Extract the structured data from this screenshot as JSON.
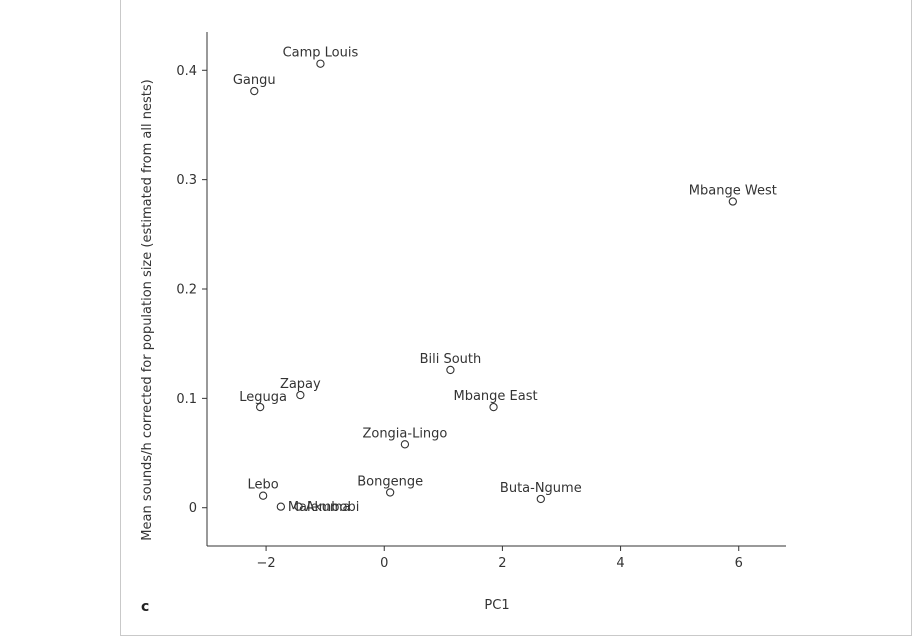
{
  "chart_data": {
    "type": "scatter",
    "panel_label": "c",
    "xlabel": "PC1",
    "ylabel": "Mean sounds/h corrected for population size (estimated from all nests)",
    "xlim": [
      -3,
      6.8
    ],
    "ylim": [
      -0.035,
      0.435
    ],
    "x_ticks": [
      -2,
      0,
      2,
      4,
      6
    ],
    "y_ticks": [
      0,
      0.1,
      0.2,
      0.3,
      0.4
    ],
    "points": [
      {
        "label": "Camp Louis",
        "x": -1.08,
        "y": 0.406,
        "anchor": "above"
      },
      {
        "label": "Gangu",
        "x": -2.2,
        "y": 0.381,
        "anchor": "above"
      },
      {
        "label": "Mbange West",
        "x": 5.9,
        "y": 0.28,
        "anchor": "above"
      },
      {
        "label": "Bili South",
        "x": 1.12,
        "y": 0.126,
        "anchor": "above"
      },
      {
        "label": "Zapay",
        "x": -1.42,
        "y": 0.103,
        "anchor": "above"
      },
      {
        "label": "Leguga",
        "x": -2.1,
        "y": 0.092,
        "anchor": "left-above"
      },
      {
        "label": "Mbange East",
        "x": 1.85,
        "y": 0.092,
        "anchor": "right-above"
      },
      {
        "label": "Zongia-Lingo",
        "x": 0.35,
        "y": 0.058,
        "anchor": "above"
      },
      {
        "label": "Bongenge",
        "x": 0.1,
        "y": 0.014,
        "anchor": "above"
      },
      {
        "label": "Lebo",
        "x": -2.05,
        "y": 0.011,
        "anchor": "above"
      },
      {
        "label": "Malembobi",
        "x": -1.75,
        "y": 0.001,
        "anchor": "right"
      },
      {
        "label": "Akuma",
        "x": -1.45,
        "y": 0.001,
        "anchor": "right"
      },
      {
        "label": "Buta-Ngume",
        "x": 2.65,
        "y": 0.008,
        "anchor": "above"
      }
    ]
  }
}
